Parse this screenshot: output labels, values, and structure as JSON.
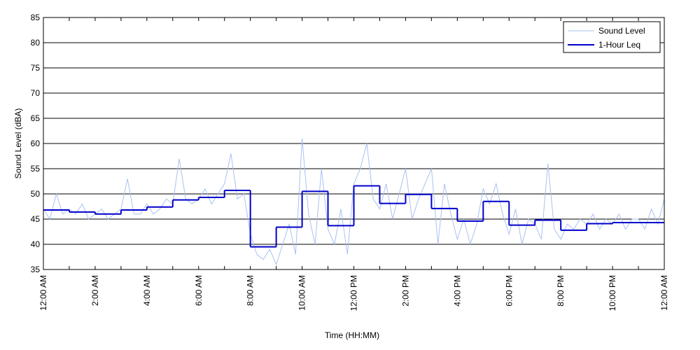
{
  "chart_data": {
    "type": "line",
    "xlabel": "Time (HH:MM)",
    "ylabel": "Sound Level (dBA)",
    "xlim": [
      0,
      24
    ],
    "xticks": [
      {
        "value": 0,
        "label": "12:00 AM"
      },
      {
        "value": 2,
        "label": "2:00 AM"
      },
      {
        "value": 4,
        "label": "4:00 AM"
      },
      {
        "value": 6,
        "label": "6:00 AM"
      },
      {
        "value": 8,
        "label": "8:00 AM"
      },
      {
        "value": 10,
        "label": "10:00 AM"
      },
      {
        "value": 12,
        "label": "12:00 PM"
      },
      {
        "value": 14,
        "label": "2:00 PM"
      },
      {
        "value": 16,
        "label": "4:00 PM"
      },
      {
        "value": 18,
        "label": "6:00 PM"
      },
      {
        "value": 20,
        "label": "8:00 PM"
      },
      {
        "value": 22,
        "label": "10:00 PM"
      },
      {
        "value": 24,
        "label": "12:00 AM"
      }
    ],
    "xminorticks": [
      1,
      3,
      5,
      7,
      9,
      11,
      13,
      15,
      17,
      19,
      21,
      23
    ],
    "ylim": [
      35,
      85
    ],
    "yticks": [
      35,
      40,
      45,
      50,
      55,
      60,
      65,
      70,
      75,
      80,
      85
    ],
    "grid": true,
    "legend": "upper right",
    "series": [
      {
        "name": "Sound Level",
        "color": "#a9c1f2",
        "drawstyle": "default",
        "x": [
          0,
          0.25,
          0.5,
          0.75,
          1,
          1.25,
          1.5,
          1.75,
          2,
          2.25,
          2.5,
          2.75,
          3,
          3.25,
          3.5,
          3.75,
          4,
          4.25,
          4.5,
          4.75,
          5,
          5.25,
          5.5,
          5.75,
          6,
          6.25,
          6.5,
          6.75,
          7,
          7.25,
          7.5,
          7.75,
          8,
          8.25,
          8.5,
          8.75,
          9,
          9.25,
          9.5,
          9.75,
          10,
          10.25,
          10.5,
          10.75,
          11,
          11.25,
          11.5,
          11.75,
          12,
          12.25,
          12.5,
          12.75,
          13,
          13.25,
          13.5,
          13.75,
          14,
          14.25,
          14.5,
          14.75,
          15,
          15.25,
          15.5,
          15.75,
          16,
          16.25,
          16.5,
          16.75,
          17,
          17.25,
          17.5,
          17.75,
          18,
          18.25,
          18.5,
          18.75,
          19,
          19.25,
          19.5,
          19.75,
          20,
          20.25,
          20.5,
          20.75,
          21,
          21.25,
          21.5,
          21.75,
          22,
          22.25,
          22.5,
          22.75,
          23,
          23.25,
          23.5,
          23.75,
          24
        ],
        "values": [
          47,
          45,
          50,
          46,
          47,
          46,
          48,
          45,
          46,
          47,
          45,
          46,
          47,
          53,
          46,
          46,
          48,
          46,
          47,
          49,
          48,
          57,
          49,
          48,
          49,
          51,
          48,
          50,
          52,
          58,
          49,
          50,
          42,
          38,
          37,
          39,
          36,
          40,
          44,
          38,
          61,
          46,
          40,
          55,
          43,
          40,
          47,
          38,
          52,
          55,
          60,
          49,
          47,
          52,
          45,
          50,
          55,
          45,
          49,
          52,
          55,
          40,
          52,
          46,
          41,
          45,
          40,
          44,
          51,
          48,
          52,
          46,
          42,
          47,
          40,
          45,
          44,
          41,
          56,
          43,
          41,
          44,
          43,
          45,
          44,
          46,
          43,
          45,
          44,
          46,
          43,
          45,
          45,
          43,
          47,
          44,
          49
        ]
      },
      {
        "name": "1-Hour Leq",
        "color": "#0000cc",
        "drawstyle": "steps-post",
        "x": [
          0,
          1,
          2,
          3,
          4,
          5,
          6,
          7,
          8,
          9,
          10,
          11,
          12,
          13,
          14,
          15,
          16,
          17,
          18,
          19,
          20,
          21,
          22,
          23
        ],
        "values": [
          46.8,
          46.4,
          46.0,
          46.8,
          47.4,
          48.8,
          49.3,
          50.7,
          39.5,
          43.4,
          50.5,
          43.7,
          51.6,
          48.1,
          49.9,
          47.1,
          44.6,
          48.5,
          43.8,
          44.8,
          42.8,
          44.1,
          44.3,
          44.3
        ]
      }
    ]
  }
}
